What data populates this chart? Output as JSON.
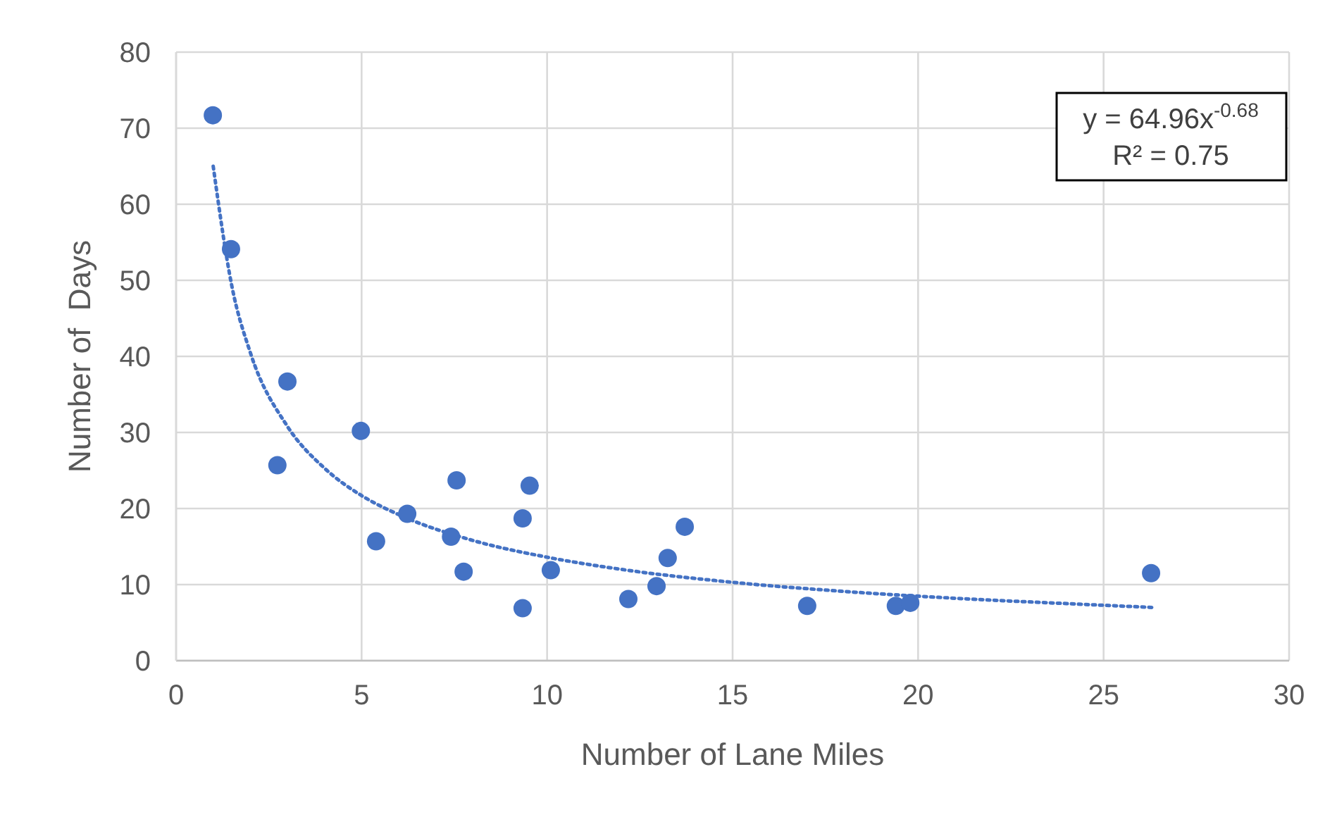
{
  "chart_data": {
    "type": "scatter",
    "xlabel": "Number of Lane Miles",
    "ylabel": "Number of  Days",
    "xlim": [
      0,
      30
    ],
    "xticks": [
      0,
      5,
      10,
      15,
      20,
      25,
      30
    ],
    "ylim": [
      0,
      80
    ],
    "yticks": [
      0,
      10,
      20,
      30,
      40,
      50,
      60,
      70,
      80
    ],
    "grid": true,
    "annotations": [
      "y = 64.96x$^{-0.68}$",
      "R² = 0.75"
    ],
    "series": [
      {
        "color": "#4472c4",
        "marker": "circle",
        "x": [
          0.99,
          1.48,
          3.0,
          2.73,
          4.98,
          5.39,
          6.23,
          7.56,
          7.41,
          7.75,
          9.34,
          9.53,
          9.34,
          10.1,
          12.19,
          12.95,
          13.25,
          13.71,
          17.01,
          19.4,
          19.79,
          26.28
        ],
        "values": [
          71.7,
          54.1,
          36.7,
          25.7,
          30.2,
          15.7,
          19.3,
          23.7,
          16.3,
          11.7,
          18.7,
          23.0,
          6.9,
          11.9,
          8.1,
          9.8,
          13.5,
          17.6,
          7.2,
          7.2,
          7.6,
          11.5
        ]
      },
      {
        "type": "line",
        "color": "#4472c4",
        "line_style": "dotted",
        "marker": "none",
        "x": [
          1,
          1.5,
          2,
          3,
          4,
          5,
          6,
          8,
          10,
          12,
          15,
          18,
          21,
          24,
          26.3
        ],
        "values": [
          65.0,
          49.3,
          40.5,
          30.8,
          25.3,
          21.7,
          19.2,
          15.8,
          13.6,
          12.0,
          10.3,
          9.1,
          8.2,
          7.5,
          7.0
        ]
      }
    ]
  }
}
